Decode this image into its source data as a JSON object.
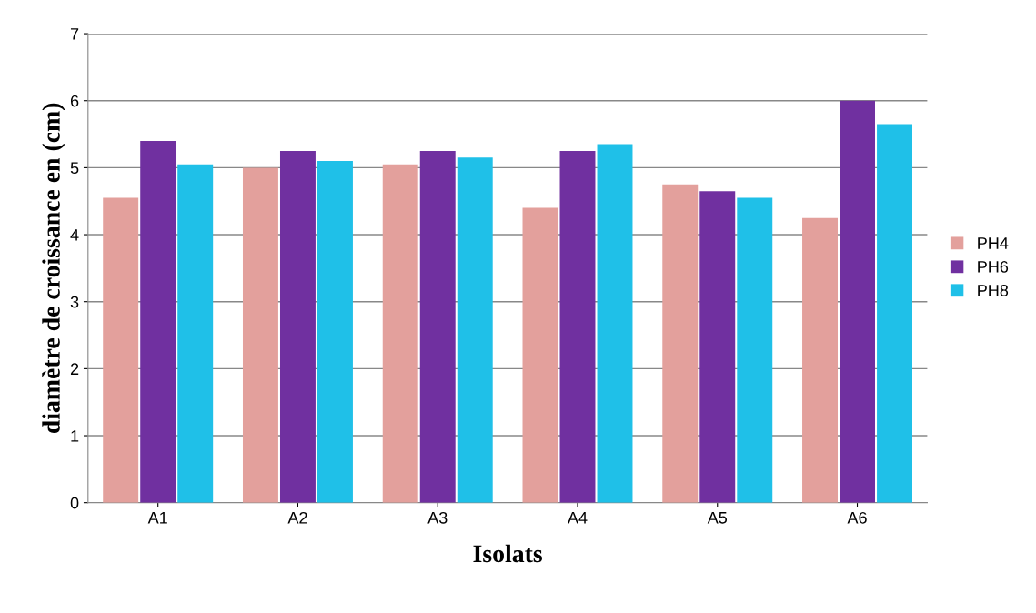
{
  "chart_data": {
    "type": "bar",
    "xlabel": "Isolats",
    "ylabel": "diamètre de croissance en (cm)",
    "categories": [
      "A1",
      "A2",
      "A3",
      "A4",
      "A5",
      "A6"
    ],
    "series": [
      {
        "name": "PH4",
        "color": "#e3a09c",
        "values": [
          4.55,
          5.0,
          5.05,
          4.4,
          4.75,
          4.25
        ]
      },
      {
        "name": "PH6",
        "color": "#7030a0",
        "values": [
          5.4,
          5.25,
          5.25,
          5.25,
          4.65,
          6.0
        ]
      },
      {
        "name": "PH8",
        "color": "#1fc0e8",
        "values": [
          5.05,
          5.1,
          5.15,
          5.35,
          4.55,
          5.65
        ]
      }
    ],
    "ylim": [
      0,
      7
    ],
    "yticks": [
      0,
      1,
      2,
      3,
      4,
      5,
      6,
      7
    ],
    "grid": "y",
    "legend": "right"
  }
}
